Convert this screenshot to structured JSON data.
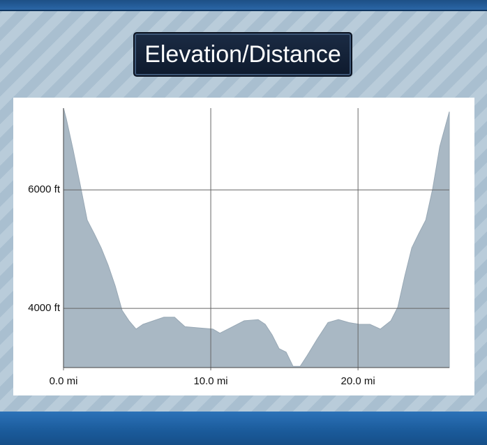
{
  "chart_data": {
    "type": "area",
    "title": "Elevation/Distance",
    "x": [
      0,
      0.19,
      0.66,
      1.14,
      1.61,
      2.09,
      2.56,
      3.03,
      3.51,
      3.98,
      4.45,
      4.93,
      5.4,
      6.11,
      6.82,
      7.54,
      8.25,
      9.19,
      10.14,
      10.62,
      11.33,
      12.27,
      13.22,
      13.7,
      14.17,
      14.64,
      15.12,
      15.59,
      16.07,
      16.54,
      17.25,
      17.96,
      18.67,
      19.38,
      20.09,
      20.81,
      21.52,
      22.23,
      22.7,
      23.18,
      23.65,
      24.12,
      24.6,
      25.07,
      25.55,
      26.2
    ],
    "values": [
      7380,
      7200,
      6670,
      6080,
      5490,
      5260,
      5020,
      4730,
      4380,
      3965,
      3790,
      3650,
      3730,
      3790,
      3850,
      3850,
      3690,
      3670,
      3650,
      3580,
      3670,
      3790,
      3810,
      3730,
      3550,
      3320,
      3260,
      3020,
      3020,
      3200,
      3490,
      3760,
      3810,
      3760,
      3730,
      3730,
      3650,
      3790,
      4020,
      4550,
      5020,
      5260,
      5490,
      6020,
      6730,
      7320
    ],
    "color": "#a9b8c4",
    "xlim": [
      0,
      26.2
    ],
    "ylim": [
      3000,
      7380
    ],
    "xticks": [
      {
        "value": 0,
        "label": "0.0 mi"
      },
      {
        "value": 10,
        "label": "10.0 mi"
      },
      {
        "value": 20,
        "label": "20.0 mi"
      }
    ],
    "yticks": [
      {
        "value": 4000,
        "label": "4000 ft"
      },
      {
        "value": 6000,
        "label": "6000 ft"
      }
    ],
    "grid": true
  }
}
